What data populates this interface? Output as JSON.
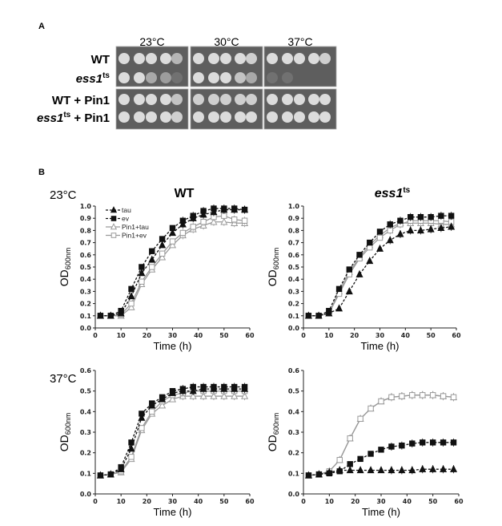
{
  "panel_a": {
    "label": "A",
    "temperatures": [
      "23°C",
      "30°C",
      "37°C"
    ],
    "strains": [
      {
        "name": "WT",
        "sup": "",
        "suffix": "",
        "italic": false
      },
      {
        "name": "ess1",
        "sup": "ts",
        "suffix": "",
        "italic": true
      },
      {
        "name": "WT + Pin1",
        "sup": "",
        "suffix": "",
        "italic": false
      },
      {
        "name": "ess1",
        "sup": "ts",
        "suffix": " + Pin1",
        "italic": true
      }
    ],
    "spot_growth": [
      [
        [
          1,
          1,
          1,
          1,
          0.7
        ],
        [
          1,
          1,
          0.6,
          0.5,
          0.1
        ],
        [
          1,
          1,
          1,
          1,
          0.8
        ],
        [
          1,
          1,
          1,
          1,
          0.9
        ]
      ],
      [
        [
          1,
          1,
          1,
          1,
          0.9
        ],
        [
          1,
          1,
          1,
          0.8,
          0.6
        ],
        [
          0.9,
          0.9,
          0.9,
          0.9,
          0.9
        ],
        [
          1,
          1,
          1,
          1,
          1
        ]
      ],
      [
        [
          1,
          1,
          1,
          1,
          0.9
        ],
        [
          0.1,
          0.05,
          0,
          0,
          0
        ],
        [
          1,
          1,
          1,
          1,
          1
        ],
        [
          1,
          1,
          1,
          1,
          1
        ]
      ]
    ]
  },
  "panel_b": {
    "label": "B",
    "row_labels": [
      "23°C",
      "37°C"
    ],
    "col_titles": [
      {
        "name": "WT",
        "sup": ""
      },
      {
        "name": "ess1",
        "sup": "ts"
      }
    ]
  },
  "chart_data": [
    {
      "type": "line",
      "title": "WT 23°C",
      "xlabel": "Time (h)",
      "ylabel": "OD600nm",
      "xlim": [
        0,
        60
      ],
      "ylim": [
        0,
        1.0
      ],
      "ystep": 0.1,
      "legend": "top-left",
      "x": [
        2,
        6,
        10,
        14,
        18,
        22,
        26,
        30,
        34,
        38,
        42,
        46,
        50,
        54,
        58
      ],
      "series": [
        {
          "name": "tau",
          "values": [
            0.1,
            0.1,
            0.12,
            0.26,
            0.45,
            0.56,
            0.68,
            0.78,
            0.85,
            0.9,
            0.93,
            0.95,
            0.97,
            0.97,
            0.97
          ]
        },
        {
          "name": "ev",
          "values": [
            0.1,
            0.1,
            0.14,
            0.32,
            0.5,
            0.63,
            0.73,
            0.82,
            0.88,
            0.92,
            0.96,
            0.98,
            0.98,
            0.98,
            0.97
          ]
        },
        {
          "name": "Pin1+tau",
          "values": [
            0.1,
            0.1,
            0.1,
            0.17,
            0.36,
            0.48,
            0.58,
            0.68,
            0.76,
            0.81,
            0.84,
            0.87,
            0.87,
            0.86,
            0.86
          ]
        },
        {
          "name": "Pin1+ev",
          "values": [
            0.1,
            0.1,
            0.11,
            0.2,
            0.38,
            0.5,
            0.61,
            0.71,
            0.78,
            0.83,
            0.87,
            0.91,
            0.92,
            0.89,
            0.88
          ]
        }
      ]
    },
    {
      "type": "line",
      "title": "ess1ts 23°C",
      "xlabel": "Time (h)",
      "ylabel": "OD600nm",
      "xlim": [
        0,
        60
      ],
      "ylim": [
        0,
        1.0
      ],
      "ystep": 0.1,
      "x": [
        2,
        6,
        10,
        14,
        18,
        22,
        26,
        30,
        34,
        38,
        42,
        46,
        50,
        54,
        58
      ],
      "series": [
        {
          "name": "tau",
          "values": [
            0.1,
            0.1,
            0.12,
            0.16,
            0.3,
            0.44,
            0.55,
            0.65,
            0.72,
            0.77,
            0.8,
            0.8,
            0.81,
            0.82,
            0.83
          ]
        },
        {
          "name": "ev",
          "values": [
            0.1,
            0.1,
            0.14,
            0.32,
            0.48,
            0.6,
            0.7,
            0.79,
            0.85,
            0.88,
            0.91,
            0.91,
            0.91,
            0.92,
            0.92
          ]
        },
        {
          "name": "Pin1+tau",
          "values": [
            0.1,
            0.1,
            0.12,
            0.3,
            0.46,
            0.58,
            0.68,
            0.76,
            0.82,
            0.86,
            0.86,
            0.86,
            0.86,
            0.85,
            0.85
          ]
        },
        {
          "name": "Pin1+ev",
          "values": [
            0.1,
            0.1,
            0.12,
            0.28,
            0.44,
            0.57,
            0.66,
            0.74,
            0.8,
            0.85,
            0.88,
            0.88,
            0.88,
            0.88,
            0.87
          ]
        }
      ]
    },
    {
      "type": "line",
      "title": "WT 37°C",
      "xlabel": "Time (h)",
      "ylabel": "OD600nm",
      "xlim": [
        0,
        60
      ],
      "ylim": [
        0,
        0.6
      ],
      "ystep": 0.1,
      "x": [
        2,
        6,
        10,
        14,
        18,
        22,
        26,
        30,
        34,
        38,
        42,
        46,
        50,
        54,
        58
      ],
      "series": [
        {
          "name": "tau",
          "values": [
            0.09,
            0.095,
            0.12,
            0.22,
            0.37,
            0.43,
            0.46,
            0.49,
            0.5,
            0.5,
            0.51,
            0.51,
            0.51,
            0.51,
            0.51
          ]
        },
        {
          "name": "ev",
          "values": [
            0.09,
            0.095,
            0.13,
            0.25,
            0.39,
            0.44,
            0.47,
            0.5,
            0.51,
            0.52,
            0.52,
            0.52,
            0.52,
            0.52,
            0.52
          ]
        },
        {
          "name": "Pin1+tau",
          "values": [
            0.09,
            0.095,
            0.105,
            0.17,
            0.31,
            0.39,
            0.43,
            0.46,
            0.475,
            0.475,
            0.475,
            0.475,
            0.475,
            0.475,
            0.475
          ]
        },
        {
          "name": "Pin1+ev",
          "values": [
            0.09,
            0.095,
            0.11,
            0.18,
            0.32,
            0.4,
            0.45,
            0.48,
            0.49,
            0.5,
            0.5,
            0.5,
            0.5,
            0.5,
            0.5
          ]
        }
      ]
    },
    {
      "type": "line",
      "title": "ess1ts 37°C",
      "xlabel": "Time (h)",
      "ylabel": "OD600nm",
      "xlim": [
        0,
        60
      ],
      "ylim": [
        0,
        0.6
      ],
      "ystep": 0.1,
      "x": [
        2,
        6,
        10,
        14,
        18,
        22,
        26,
        30,
        34,
        38,
        42,
        46,
        50,
        54,
        58
      ],
      "series": [
        {
          "name": "tau",
          "values": [
            0.09,
            0.095,
            0.105,
            0.115,
            0.115,
            0.115,
            0.115,
            0.115,
            0.115,
            0.115,
            0.115,
            0.12,
            0.12,
            0.12,
            0.12
          ]
        },
        {
          "name": "ev",
          "values": [
            0.09,
            0.095,
            0.1,
            0.11,
            0.145,
            0.17,
            0.195,
            0.215,
            0.23,
            0.235,
            0.245,
            0.25,
            0.25,
            0.25,
            0.25
          ]
        },
        {
          "name": "Pin1+tau",
          "values": [
            0.09,
            0.095,
            0.11,
            0.165,
            0.27,
            0.365,
            0.415,
            0.45,
            0.47,
            0.475,
            0.48,
            0.48,
            0.48,
            0.475,
            0.47
          ]
        },
        {
          "name": "Pin1+ev",
          "values": [
            0.09,
            0.095,
            0.11,
            0.165,
            0.27,
            0.365,
            0.415,
            0.45,
            0.47,
            0.475,
            0.48,
            0.48,
            0.48,
            0.475,
            0.47
          ]
        }
      ]
    }
  ],
  "axis_text": {
    "od": "OD",
    "od_sub": "600nm",
    "time": "Time (h)"
  },
  "colors": {
    "black": "#111111",
    "gray": "#9a9a9a",
    "plate": "#5e5e5e",
    "colony": "#dcdcdc"
  }
}
